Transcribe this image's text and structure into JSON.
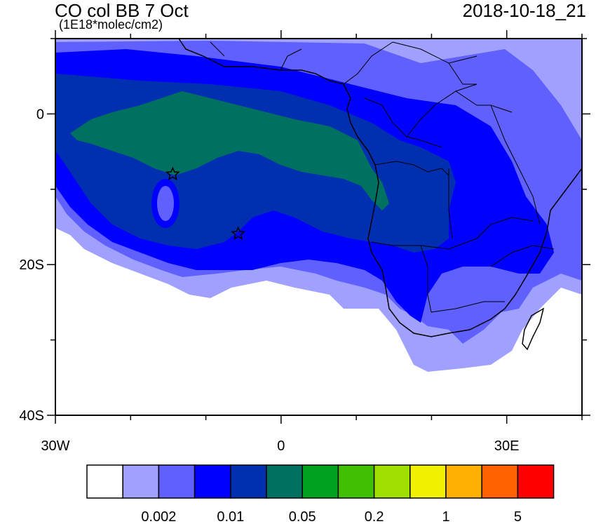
{
  "header": {
    "title": "CO col BB 7 Oct",
    "units": "(1E18*molec/cm2)",
    "datetime": "2018-10-18_21"
  },
  "axes": {
    "lat_labels": [
      {
        "value": 0,
        "label": "0"
      },
      {
        "value": -20,
        "label": "20S"
      },
      {
        "value": -40,
        "label": "40S"
      }
    ],
    "lon_labels": [
      {
        "value": -30,
        "label": "30W"
      },
      {
        "value": 0,
        "label": "0"
      },
      {
        "value": 30,
        "label": "30E"
      }
    ],
    "lat_range": [
      -40,
      10
    ],
    "lon_range": [
      -30,
      40
    ]
  },
  "map": {
    "field": "CO column biomass burning tracer",
    "markers": [
      {
        "name": "star-marker",
        "lon": -14.4,
        "lat": -8.0
      },
      {
        "name": "star-marker",
        "lon": -5.7,
        "lat": -15.9
      }
    ]
  },
  "colorbar": {
    "colors": [
      "#ffffff",
      "#a0a0ff",
      "#6060ff",
      "#0000ff",
      "#0030b0",
      "#007060",
      "#00a020",
      "#40c000",
      "#a0e000",
      "#f0f000",
      "#ffb000",
      "#ff6000",
      "#ff0000"
    ],
    "labels": [
      {
        "after_box": 2,
        "text": "0.002"
      },
      {
        "after_box": 4,
        "text": "0.01"
      },
      {
        "after_box": 6,
        "text": "0.05"
      },
      {
        "after_box": 8,
        "text": "0.2"
      },
      {
        "after_box": 10,
        "text": "1"
      },
      {
        "after_box": 12,
        "text": "5"
      }
    ]
  }
}
